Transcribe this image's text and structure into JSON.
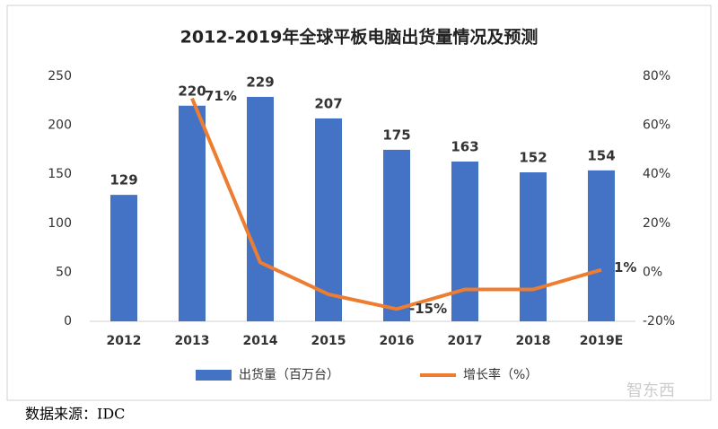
{
  "chart_data": {
    "type": "bar-line",
    "title": "2012-2019年全球平板电脑出货量情况及预测",
    "categories": [
      "2012",
      "2013",
      "2014",
      "2015",
      "2016",
      "2017",
      "2018",
      "2019E"
    ],
    "series": [
      {
        "name": "出货量（百万台）",
        "type": "bar",
        "color": "#4472c4",
        "values": [
          129,
          220,
          229,
          207,
          175,
          163,
          152,
          154
        ]
      },
      {
        "name": "增长率（%）",
        "type": "line",
        "axis": "y2",
        "color": "#ed7d31",
        "values": [
          null,
          71,
          4,
          -9,
          -15,
          -7,
          -7,
          1
        ],
        "value_labels": [
          null,
          "71%",
          null,
          null,
          "-15%",
          null,
          null,
          "1%"
        ]
      }
    ],
    "ylim": [
      0,
      250
    ],
    "yticks": [
      0,
      50,
      100,
      150,
      200,
      250
    ],
    "y2lim": [
      -20,
      80
    ],
    "y2ticks": [
      {
        "value": -20,
        "label": "-20%"
      },
      {
        "value": 0,
        "label": "0%"
      },
      {
        "value": 20,
        "label": "20%"
      },
      {
        "value": 40,
        "label": "40%"
      },
      {
        "value": 60,
        "label": "60%"
      },
      {
        "value": 80,
        "label": "80%"
      }
    ],
    "legend": "bottom",
    "source": "数据来源：IDC",
    "watermark": "智东西"
  }
}
